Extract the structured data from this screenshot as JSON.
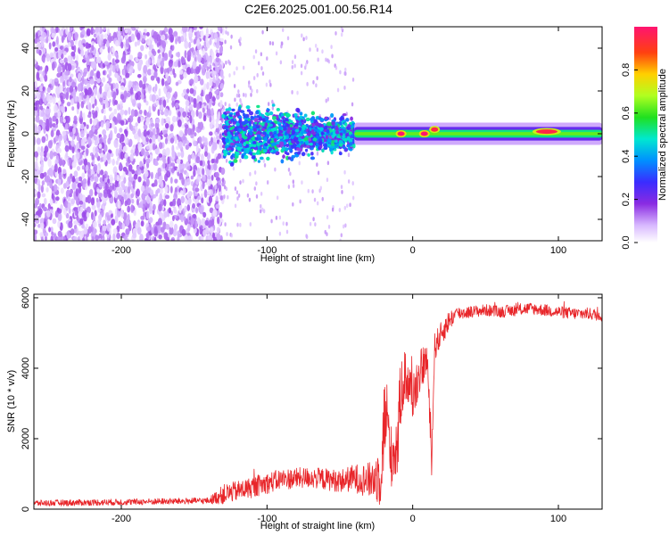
{
  "title": "C2E6.2025.001.00.56.R14",
  "colors": {
    "snr_line": "#e8262a",
    "frame": "#000000",
    "background": "#ffffff"
  },
  "chart_data": [
    {
      "type": "heatmap",
      "name": "spectrogram",
      "xlabel": "Height of straight line (km)",
      "ylabel": "Frequency (Hz)",
      "xlim": [
        -260,
        130
      ],
      "ylim": [
        -50,
        50
      ],
      "xticks": [
        -200,
        -100,
        0,
        100
      ],
      "yticks": [
        -40,
        -20,
        0,
        20,
        40
      ],
      "grid": false,
      "colorbar": {
        "label": "Normalized spectral amplitude",
        "range": [
          0.0,
          1.0
        ],
        "ticks": [
          "0.0",
          "0.2",
          "0.4",
          "0.6",
          "0.8"
        ],
        "colormap": "rainbow (violet at 0 to red/magenta at 1)"
      },
      "regions": [
        {
          "x_range": [
            -260,
            -130
          ],
          "freq_range": [
            -50,
            50
          ],
          "amplitude": 0.1,
          "pattern": "broadband noise"
        },
        {
          "x_range": [
            -130,
            -40
          ],
          "freq_center": 0,
          "freq_halfwidth": 10,
          "amplitude": 0.35,
          "pattern": "scattered blobs"
        },
        {
          "x_range": [
            -40,
            130
          ],
          "freq_center": 0,
          "freq_halfwidth": 2,
          "amplitude": 0.5,
          "pattern": "narrow tone"
        }
      ],
      "peaks": [
        {
          "x": -8,
          "freq": 0,
          "amplitude": 1.0
        },
        {
          "x": 8,
          "freq": 0,
          "amplitude": 1.0
        },
        {
          "x": 15,
          "freq": 2,
          "amplitude": 0.95
        },
        {
          "x": 92,
          "freq": 1,
          "amplitude": 0.95
        }
      ]
    },
    {
      "type": "line",
      "name": "snr",
      "xlabel": "Height of straight line (km)",
      "ylabel": "SNR (10 * v/v)",
      "xlim": [
        -260,
        130
      ],
      "ylim": [
        0,
        6100
      ],
      "xticks": [
        -200,
        -100,
        0,
        100
      ],
      "yticks": [
        0,
        2000,
        4000,
        6000
      ],
      "grid": false,
      "series": [
        {
          "color": "#e8262a",
          "envelope": {
            "x": [
              -260,
              -200,
              -140,
              -130,
              -110,
              -90,
              -70,
              -50,
              -40,
              -30,
              -25,
              -22,
              -20,
              -18,
              -15,
              -12,
              -10,
              -8,
              -5,
              0,
              5,
              10,
              13,
              15,
              20,
              25,
              30,
              40,
              50,
              60,
              70,
              80,
              90,
              100,
              110,
              120,
              130
            ],
            "y": [
              170,
              200,
              240,
              420,
              620,
              850,
              900,
              800,
              880,
              820,
              900,
              1100,
              2300,
              2700,
              1500,
              1700,
              2000,
              3500,
              3800,
              3200,
              3900,
              4300,
              1200,
              4600,
              5000,
              5350,
              5550,
              5600,
              5650,
              5600,
              5650,
              5700,
              5650,
              5600,
              5550,
              5550,
              5500
            ],
            "noise": [
              90,
              90,
              90,
              280,
              300,
              300,
              300,
              320,
              400,
              500,
              700,
              1100,
              1300,
              1200,
              900,
              900,
              1100,
              1000,
              800,
              700,
              600,
              500,
              400,
              400,
              350,
              300,
              200,
              170,
              170,
              170,
              170,
              170,
              170,
              170,
              170,
              170,
              170
            ]
          }
        }
      ]
    }
  ]
}
